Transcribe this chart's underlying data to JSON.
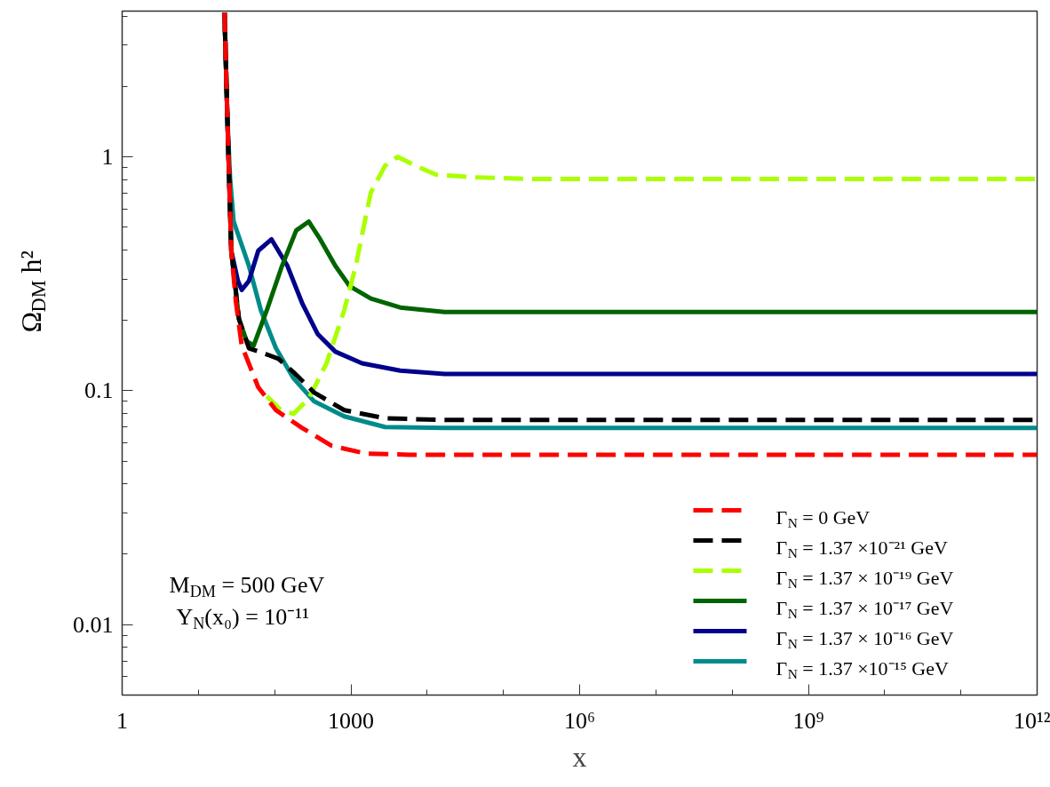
{
  "chart_data": {
    "type": "line",
    "xlabel": "x",
    "ylabel": "Ω$_{DM}$ h²",
    "log": "xy",
    "grid": false,
    "legend": "bottom right",
    "xlim": [
      1,
      1000000000000.0
    ],
    "ylim": [
      0.005,
      4.2
    ],
    "xticks": [
      1,
      1000,
      {
        "value": 1000000.0,
        "label": "10⁶"
      },
      {
        "value": 1000000000.0,
        "label": "10⁹"
      },
      {
        "value": 1000000000000.0,
        "label": "10¹²"
      }
    ],
    "yticks": [
      0.01,
      0.1,
      1
    ],
    "annotations": [
      "M$_{DM}$ = 500 GeV",
      "Y$_{N}$(x₀) = 10⁻¹¹"
    ],
    "series": [
      {
        "name": "Γ$_{N}$ = 0 GeV",
        "color": "#ff0000",
        "line_style": "dashed",
        "x": [
          22,
          24,
          27,
          31,
          37,
          61,
          104,
          230,
          560,
          1600,
          5800,
          250000,
          1000000000000.0
        ],
        "values": [
          4.14,
          1.47,
          0.397,
          0.241,
          0.156,
          0.1035,
          0.0826,
          0.0693,
          0.0582,
          0.0538,
          0.0533,
          0.0533,
          0.0533
        ]
      },
      {
        "name": "Γ$_{N}$ = 1.37  ×10⁻²¹ GeV",
        "color": "#000000",
        "line_style": "dashed",
        "x": [
          22,
          24,
          27,
          34,
          46,
          79,
          112,
          177,
          329,
          819,
          2810,
          16900,
          1000000000000.0
        ],
        "values": [
          4.14,
          1.47,
          0.397,
          0.203,
          0.152,
          0.143,
          0.137,
          0.12,
          0.0983,
          0.0826,
          0.0763,
          0.075,
          0.075
        ]
      },
      {
        "name": "Γ$_{N}$ = 1.37 × 10⁻¹⁹ GeV",
        "color": "#aaff00",
        "line_style": "dashed",
        "x": [
          79,
          119,
          177,
          280,
          479,
          819,
          1160,
          1520,
          1830,
          2810,
          4090,
          7000,
          13000,
          41100,
          248000,
          1000000000000.0
        ],
        "values": [
          0.0949,
          0.0832,
          0.0797,
          0.0925,
          0.131,
          0.221,
          0.342,
          0.529,
          0.705,
          0.917,
          1.0,
          0.917,
          0.84,
          0.818,
          0.804,
          0.804
        ]
      },
      {
        "name": "Γ$_{N}$ = 1.37 × 10⁻¹⁷ GeV",
        "color": "#006400",
        "line_style": "solid",
        "x": [
          22,
          24,
          27,
          34,
          43,
          53,
          79,
          125,
          192,
          280,
          396,
          625,
          962,
          1830,
          4440,
          16900,
          1000000000000.0
        ],
        "values": [
          4.14,
          1.47,
          0.397,
          0.203,
          0.163,
          0.156,
          0.221,
          0.342,
          0.485,
          0.529,
          0.444,
          0.342,
          0.28,
          0.248,
          0.227,
          0.217,
          0.217
        ]
      },
      {
        "name": "Γ$_{N}$ = 1.37 × 10⁻¹⁶ GeV",
        "color": "#00008b",
        "line_style": "solid",
        "x": [
          22,
          24,
          27,
          33,
          37,
          46,
          61,
          91,
          147,
          232,
          366,
          625,
          1400,
          4440,
          16900,
          1000000000000.0
        ],
        "values": [
          4.14,
          1.47,
          0.397,
          0.295,
          0.27,
          0.295,
          0.397,
          0.444,
          0.342,
          0.235,
          0.175,
          0.147,
          0.131,
          0.122,
          0.118,
          0.118
        ]
      },
      {
        "name": "Γ$_{N}$ = 1.37  ×10⁻¹⁵ GeV",
        "color": "#008b8b",
        "line_style": "solid",
        "x": [
          22,
          24,
          26,
          29,
          46,
          66,
          104,
          177,
          329,
          819,
          2810,
          16900,
          1000000000000.0
        ],
        "values": [
          4.14,
          1.47,
          0.818,
          0.529,
          0.342,
          0.221,
          0.152,
          0.113,
          0.0901,
          0.0777,
          0.07,
          0.0693,
          0.0693
        ]
      }
    ]
  }
}
